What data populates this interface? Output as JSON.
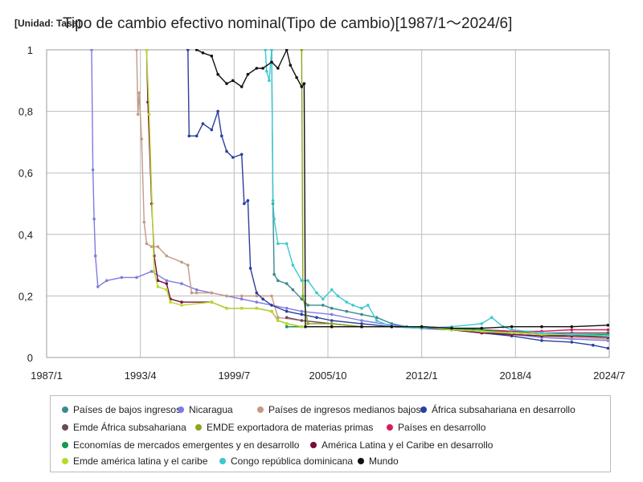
{
  "chart_data": {
    "type": "line",
    "title": "Tipo de cambio efectivo nominal(Tipo de cambio)[1987/1～2024/6]",
    "unit_label": "[Unidad: Tasa]",
    "x_ticks": [
      "1987/1",
      "1993/4",
      "1999/7",
      "2005/10",
      "2012/1",
      "2018/4",
      "2024/7"
    ],
    "y_ticks": [
      "0",
      "0,2",
      "0,4",
      "0,6",
      "0,8",
      "1"
    ],
    "xlim": [
      "1987-01",
      "2024-07"
    ],
    "ylim": [
      0,
      1
    ],
    "grid": true,
    "legend_position": "bottom",
    "series": [
      {
        "name": "Países de bajos ingresos",
        "color": "#3a8a8e",
        "points": [
          [
            "2002-01",
            1.0
          ],
          [
            "2002-02",
            0.5
          ],
          [
            "2002-03",
            0.27
          ],
          [
            "2002-06",
            0.25
          ],
          [
            "2003-01",
            0.24
          ],
          [
            "2003-06",
            0.22
          ],
          [
            "2004-01",
            0.19
          ],
          [
            "2004-06",
            0.17
          ],
          [
            "2005-06",
            0.17
          ],
          [
            "2006-01",
            0.16
          ],
          [
            "2007-01",
            0.15
          ],
          [
            "2008-01",
            0.14
          ],
          [
            "2009-01",
            0.13
          ],
          [
            "2010-01",
            0.11
          ],
          [
            "2011-01",
            0.1
          ],
          [
            "2013-01",
            0.095
          ],
          [
            "2016-01",
            0.09
          ],
          [
            "2018-01",
            0.08
          ],
          [
            "2020-01",
            0.075
          ],
          [
            "2022-01",
            0.07
          ],
          [
            "2024-06",
            0.07
          ]
        ]
      },
      {
        "name": "Nicaragua",
        "color": "#7e7be0",
        "points": [
          [
            "1990-01",
            1.0
          ],
          [
            "1990-02",
            0.61
          ],
          [
            "1990-03",
            0.45
          ],
          [
            "1990-04",
            0.33
          ],
          [
            "1990-06",
            0.23
          ],
          [
            "1991-01",
            0.25
          ],
          [
            "1992-01",
            0.26
          ],
          [
            "1993-01",
            0.26
          ],
          [
            "1994-01",
            0.28
          ],
          [
            "1995-01",
            0.25
          ],
          [
            "1996-01",
            0.24
          ],
          [
            "1997-01",
            0.22
          ],
          [
            "1998-01",
            0.21
          ],
          [
            "1999-01",
            0.2
          ],
          [
            "2000-01",
            0.19
          ],
          [
            "2001-01",
            0.18
          ],
          [
            "2002-01",
            0.17
          ],
          [
            "2003-01",
            0.16
          ],
          [
            "2004-01",
            0.15
          ],
          [
            "2006-01",
            0.14
          ],
          [
            "2008-01",
            0.12
          ],
          [
            "2010-01",
            0.105
          ],
          [
            "2012-01",
            0.095
          ],
          [
            "2014-01",
            0.09
          ],
          [
            "2016-01",
            0.085
          ],
          [
            "2018-01",
            0.075
          ],
          [
            "2020-01",
            0.065
          ],
          [
            "2022-01",
            0.06
          ],
          [
            "2024-06",
            0.055
          ]
        ]
      },
      {
        "name": "Países de ingresos medianos bajos",
        "color": "#c49a86",
        "points": [
          [
            "1993-01",
            1.0
          ],
          [
            "1993-02",
            0.79
          ],
          [
            "1993-03",
            0.86
          ],
          [
            "1993-05",
            0.71
          ],
          [
            "1993-07",
            0.44
          ],
          [
            "1993-09",
            0.37
          ],
          [
            "1994-01",
            0.36
          ],
          [
            "1994-06",
            0.36
          ],
          [
            "1995-01",
            0.33
          ],
          [
            "1996-01",
            0.31
          ],
          [
            "1996-06",
            0.3
          ],
          [
            "1996-09",
            0.21
          ],
          [
            "1997-01",
            0.21
          ],
          [
            "1998-01",
            0.21
          ],
          [
            "1999-01",
            0.2
          ],
          [
            "2000-01",
            0.2
          ],
          [
            "2001-01",
            0.2
          ],
          [
            "2002-01",
            0.2
          ],
          [
            "2002-06",
            0.13
          ],
          [
            "2004-01",
            0.12
          ],
          [
            "2006-01",
            0.11
          ],
          [
            "2008-01",
            0.1
          ],
          [
            "2010-01",
            0.1
          ],
          [
            "2012-01",
            0.095
          ],
          [
            "2014-01",
            0.09
          ],
          [
            "2016-01",
            0.08
          ],
          [
            "2018-01",
            0.075
          ],
          [
            "2020-01",
            0.07
          ],
          [
            "2022-01",
            0.065
          ],
          [
            "2024-06",
            0.06
          ]
        ]
      },
      {
        "name": "África subsahariana en desarrollo",
        "color": "#2a3f9e",
        "points": [
          [
            "1996-06",
            1.0
          ],
          [
            "1996-07",
            0.72
          ],
          [
            "1997-01",
            0.72
          ],
          [
            "1997-06",
            0.76
          ],
          [
            "1998-01",
            0.74
          ],
          [
            "1998-06",
            0.8
          ],
          [
            "1998-09",
            0.72
          ],
          [
            "1999-01",
            0.67
          ],
          [
            "1999-06",
            0.65
          ],
          [
            "2000-01",
            0.66
          ],
          [
            "2000-03",
            0.5
          ],
          [
            "2000-06",
            0.51
          ],
          [
            "2000-08",
            0.29
          ],
          [
            "2001-01",
            0.21
          ],
          [
            "2001-06",
            0.19
          ],
          [
            "2002-01",
            0.17
          ],
          [
            "2003-01",
            0.15
          ],
          [
            "2004-01",
            0.14
          ],
          [
            "2005-01",
            0.13
          ],
          [
            "2006-01",
            0.12
          ],
          [
            "2008-01",
            0.11
          ],
          [
            "2010-01",
            0.1
          ],
          [
            "2012-01",
            0.095
          ],
          [
            "2014-01",
            0.09
          ],
          [
            "2016-01",
            0.08
          ],
          [
            "2018-01",
            0.07
          ],
          [
            "2020-01",
            0.055
          ],
          [
            "2022-01",
            0.05
          ],
          [
            "2023-06",
            0.04
          ],
          [
            "2024-06",
            0.03
          ]
        ]
      },
      {
        "name": "Emde África subsahariana",
        "color": "#6b4a5a",
        "points": [
          [
            "2003-01",
            0.13
          ],
          [
            "2004-01",
            0.12
          ],
          [
            "2006-01",
            0.11
          ],
          [
            "2008-01",
            0.1
          ],
          [
            "2010-01",
            0.1
          ],
          [
            "2012-01",
            0.1
          ],
          [
            "2014-01",
            0.095
          ],
          [
            "2016-01",
            0.09
          ],
          [
            "2018-01",
            0.085
          ],
          [
            "2020-01",
            0.08
          ],
          [
            "2022-01",
            0.08
          ],
          [
            "2024-06",
            0.08
          ]
        ]
      },
      {
        "name": "EMDE exportadora de materias primas",
        "color": "#8aa61c",
        "points": [
          [
            "2004-01",
            1.0
          ],
          [
            "2004-02",
            0.2
          ],
          [
            "2004-06",
            0.11
          ],
          [
            "2006-01",
            0.11
          ],
          [
            "2008-01",
            0.1
          ],
          [
            "2010-01",
            0.1
          ],
          [
            "2012-01",
            0.1
          ],
          [
            "2014-01",
            0.09
          ],
          [
            "2016-01",
            0.085
          ],
          [
            "2018-01",
            0.08
          ],
          [
            "2020-01",
            0.075
          ],
          [
            "2022-01",
            0.075
          ],
          [
            "2024-06",
            0.07
          ]
        ]
      },
      {
        "name": "Países en desarrollo",
        "color": "#d81b60",
        "points": [
          [
            "2003-01",
            0.1
          ],
          [
            "2006-01",
            0.1
          ],
          [
            "2008-01",
            0.1
          ],
          [
            "2010-01",
            0.1
          ],
          [
            "2012-01",
            0.1
          ],
          [
            "2014-01",
            0.095
          ],
          [
            "2016-01",
            0.09
          ],
          [
            "2018-01",
            0.085
          ],
          [
            "2020-01",
            0.085
          ],
          [
            "2022-01",
            0.09
          ],
          [
            "2024-06",
            0.09
          ]
        ]
      },
      {
        "name": "Economías de mercados emergentes y en desarrollo",
        "color": "#159a4e",
        "points": [
          [
            "2003-01",
            0.1
          ],
          [
            "2006-01",
            0.1
          ],
          [
            "2008-01",
            0.1
          ],
          [
            "2010-01",
            0.1
          ],
          [
            "2012-01",
            0.1
          ],
          [
            "2014-01",
            0.095
          ],
          [
            "2016-01",
            0.09
          ],
          [
            "2018-01",
            0.08
          ],
          [
            "2020-01",
            0.075
          ],
          [
            "2022-01",
            0.075
          ],
          [
            "2024-06",
            0.075
          ]
        ]
      },
      {
        "name": "América Latina y el Caribe en desarrollo",
        "color": "#7a0a3a",
        "points": [
          [
            "1993-09",
            1.0
          ],
          [
            "1993-10",
            0.83
          ],
          [
            "1994-01",
            0.5
          ],
          [
            "1994-03",
            0.33
          ],
          [
            "1994-06",
            0.25
          ],
          [
            "1995-01",
            0.24
          ],
          [
            "1995-04",
            0.19
          ],
          [
            "1996-01",
            0.18
          ],
          [
            "1998-01",
            0.18
          ],
          [
            "1999-01",
            0.16
          ],
          [
            "2000-01",
            0.16
          ],
          [
            "2001-01",
            0.16
          ],
          [
            "2002-01",
            0.15
          ],
          [
            "2002-06",
            0.12
          ],
          [
            "2003-01",
            0.11
          ],
          [
            "2004-01",
            0.1
          ],
          [
            "2006-01",
            0.1
          ],
          [
            "2008-01",
            0.1
          ],
          [
            "2010-01",
            0.1
          ],
          [
            "2012-01",
            0.1
          ],
          [
            "2014-01",
            0.09
          ],
          [
            "2016-01",
            0.08
          ],
          [
            "2018-01",
            0.075
          ],
          [
            "2020-01",
            0.07
          ],
          [
            "2022-01",
            0.07
          ],
          [
            "2024-06",
            0.065
          ]
        ]
      },
      {
        "name": "Emde américa latina y el caribe",
        "color": "#b5dc2a",
        "points": [
          [
            "1993-09",
            1.0
          ],
          [
            "1993-11",
            0.79
          ],
          [
            "1994-03",
            0.28
          ],
          [
            "1994-06",
            0.23
          ],
          [
            "1995-01",
            0.22
          ],
          [
            "1995-04",
            0.18
          ],
          [
            "1996-01",
            0.17
          ],
          [
            "1998-01",
            0.18
          ],
          [
            "1999-01",
            0.16
          ],
          [
            "2000-01",
            0.16
          ],
          [
            "2001-01",
            0.16
          ],
          [
            "2002-01",
            0.15
          ],
          [
            "2002-06",
            0.12
          ],
          [
            "2003-01",
            0.11
          ],
          [
            "2004-01",
            0.1
          ],
          [
            "2006-01",
            0.1
          ],
          [
            "2008-01",
            0.1
          ],
          [
            "2010-01",
            0.1
          ],
          [
            "2012-01",
            0.1
          ],
          [
            "2014-01",
            0.09
          ],
          [
            "2016-01",
            0.085
          ],
          [
            "2018-01",
            0.08
          ],
          [
            "2020-01",
            0.075
          ],
          [
            "2022-01",
            0.075
          ],
          [
            "2024-06",
            0.07
          ]
        ]
      },
      {
        "name": "Congo república dominicana",
        "color": "#3cc8cf",
        "points": [
          [
            "2001-08",
            1.0
          ],
          [
            "2001-09",
            0.93
          ],
          [
            "2001-11",
            0.9
          ],
          [
            "2002-01",
            1.0
          ],
          [
            "2002-02",
            0.51
          ],
          [
            "2002-03",
            0.45
          ],
          [
            "2002-06",
            0.37
          ],
          [
            "2003-01",
            0.37
          ],
          [
            "2003-06",
            0.3
          ],
          [
            "2004-01",
            0.25
          ],
          [
            "2004-06",
            0.25
          ],
          [
            "2005-01",
            0.21
          ],
          [
            "2005-06",
            0.19
          ],
          [
            "2006-01",
            0.22
          ],
          [
            "2006-06",
            0.2
          ],
          [
            "2007-01",
            0.18
          ],
          [
            "2007-06",
            0.17
          ],
          [
            "2008-01",
            0.16
          ],
          [
            "2008-06",
            0.17
          ],
          [
            "2009-01",
            0.12
          ],
          [
            "2010-01",
            0.1
          ],
          [
            "2012-01",
            0.095
          ],
          [
            "2014-01",
            0.1
          ],
          [
            "2016-01",
            0.11
          ],
          [
            "2016-09",
            0.13
          ],
          [
            "2017-06",
            0.1
          ],
          [
            "2018-01",
            0.09
          ],
          [
            "2020-01",
            0.08
          ],
          [
            "2022-01",
            0.075
          ],
          [
            "2024-06",
            0.07
          ]
        ]
      },
      {
        "name": "Mundo",
        "color": "#111111",
        "points": [
          [
            "1997-01",
            1.0
          ],
          [
            "1997-06",
            0.99
          ],
          [
            "1998-01",
            0.98
          ],
          [
            "1998-06",
            0.92
          ],
          [
            "1999-01",
            0.89
          ],
          [
            "1999-06",
            0.9
          ],
          [
            "2000-01",
            0.88
          ],
          [
            "2000-06",
            0.92
          ],
          [
            "2001-01",
            0.94
          ],
          [
            "2001-06",
            0.94
          ],
          [
            "2002-01",
            0.96
          ],
          [
            "2002-06",
            0.94
          ],
          [
            "2003-01",
            1.0
          ],
          [
            "2003-04",
            0.95
          ],
          [
            "2003-09",
            0.91
          ],
          [
            "2004-01",
            0.88
          ],
          [
            "2004-03",
            0.89
          ],
          [
            "2004-04",
            0.1
          ],
          [
            "2006-01",
            0.1
          ],
          [
            "2008-01",
            0.1
          ],
          [
            "2010-01",
            0.1
          ],
          [
            "2012-01",
            0.1
          ],
          [
            "2014-01",
            0.095
          ],
          [
            "2016-01",
            0.095
          ],
          [
            "2018-01",
            0.1
          ],
          [
            "2020-01",
            0.1
          ],
          [
            "2022-01",
            0.1
          ],
          [
            "2024-06",
            0.105
          ]
        ]
      }
    ]
  }
}
